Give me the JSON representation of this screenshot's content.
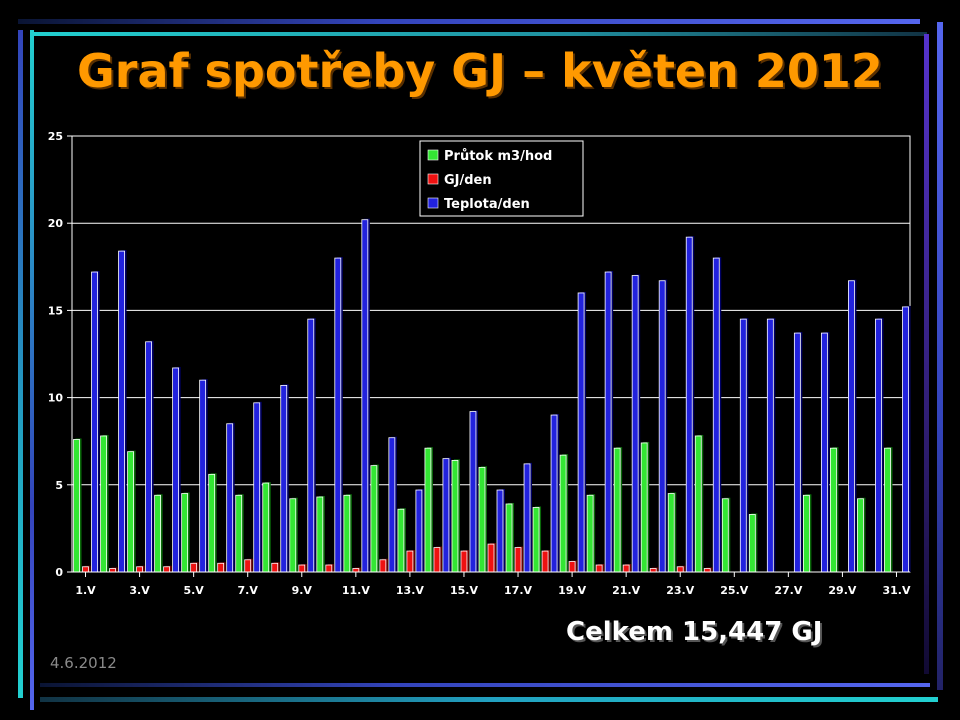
{
  "title": "Graf spotřeby GJ – květen 2012",
  "total_text": "Celkem 15,447 GJ",
  "date_text": "4.6.2012",
  "colors": {
    "background": "#000000",
    "title": "#ff9900",
    "green": "#33e633",
    "red": "#ee1111",
    "blue": "#2222dd",
    "frame_blue": "#5566ee",
    "frame_cyan": "#22d0d0"
  },
  "chart_data": {
    "type": "bar",
    "ylim": [
      0,
      25
    ],
    "yticks": [
      "0",
      "5",
      "10",
      "15",
      "20",
      "25"
    ],
    "xtick_labels": [
      "1.V",
      "3.V",
      "5.V",
      "7.V",
      "9.V",
      "11.V",
      "13.V",
      "15.V",
      "17.V",
      "19.V",
      "21.V",
      "23.V",
      "25.V",
      "27.V",
      "29.V",
      "31.V"
    ],
    "categories": [
      "1.V",
      "2.V",
      "3.V",
      "4.V",
      "5.V",
      "6.V",
      "7.V",
      "8.V",
      "9.V",
      "10.V",
      "11.V",
      "12.V",
      "13.V",
      "14.V",
      "15.V",
      "16.V",
      "17.V",
      "18.V",
      "19.V",
      "20.V",
      "21.V",
      "22.V",
      "23.V",
      "24.V",
      "25.V",
      "26.V",
      "27.V",
      "28.V",
      "29.V",
      "30.V",
      "31.V"
    ],
    "legend_position": "top-center",
    "grid": true,
    "series": [
      {
        "name": "Průtok m3/hod",
        "color": "#33e633",
        "values": [
          7.6,
          7.8,
          6.9,
          4.4,
          4.5,
          5.6,
          4.4,
          5.1,
          4.2,
          4.3,
          4.4,
          6.1,
          3.6,
          7.1,
          6.4,
          6.0,
          3.9,
          3.7,
          6.7,
          4.4,
          7.1,
          7.4,
          4.5,
          7.8,
          4.2,
          3.3,
          0.0,
          4.4,
          7.1,
          4.2,
          7.1
        ]
      },
      {
        "name": "GJ/den",
        "color": "#ee1111",
        "values": [
          0.3,
          0.2,
          0.3,
          0.3,
          0.5,
          0.5,
          0.7,
          0.5,
          0.4,
          0.4,
          0.2,
          0.7,
          1.2,
          1.4,
          1.2,
          1.6,
          1.4,
          1.2,
          0.6,
          0.4,
          0.4,
          0.2,
          0.3,
          0.2,
          0.0,
          0.0,
          0.0,
          0.0,
          0.0,
          0.0,
          0.0
        ]
      },
      {
        "name": "Teplota/den",
        "color": "#2222dd",
        "values": [
          17.2,
          18.4,
          13.2,
          11.7,
          11.0,
          8.5,
          9.7,
          10.7,
          14.5,
          18.0,
          20.2,
          7.7,
          4.7,
          6.5,
          9.2,
          4.7,
          6.2,
          9.0,
          16.0,
          17.2,
          17.0,
          16.7,
          19.2,
          18.0,
          14.5,
          14.5,
          13.7,
          13.7,
          16.7,
          14.5,
          15.2
        ]
      }
    ]
  }
}
